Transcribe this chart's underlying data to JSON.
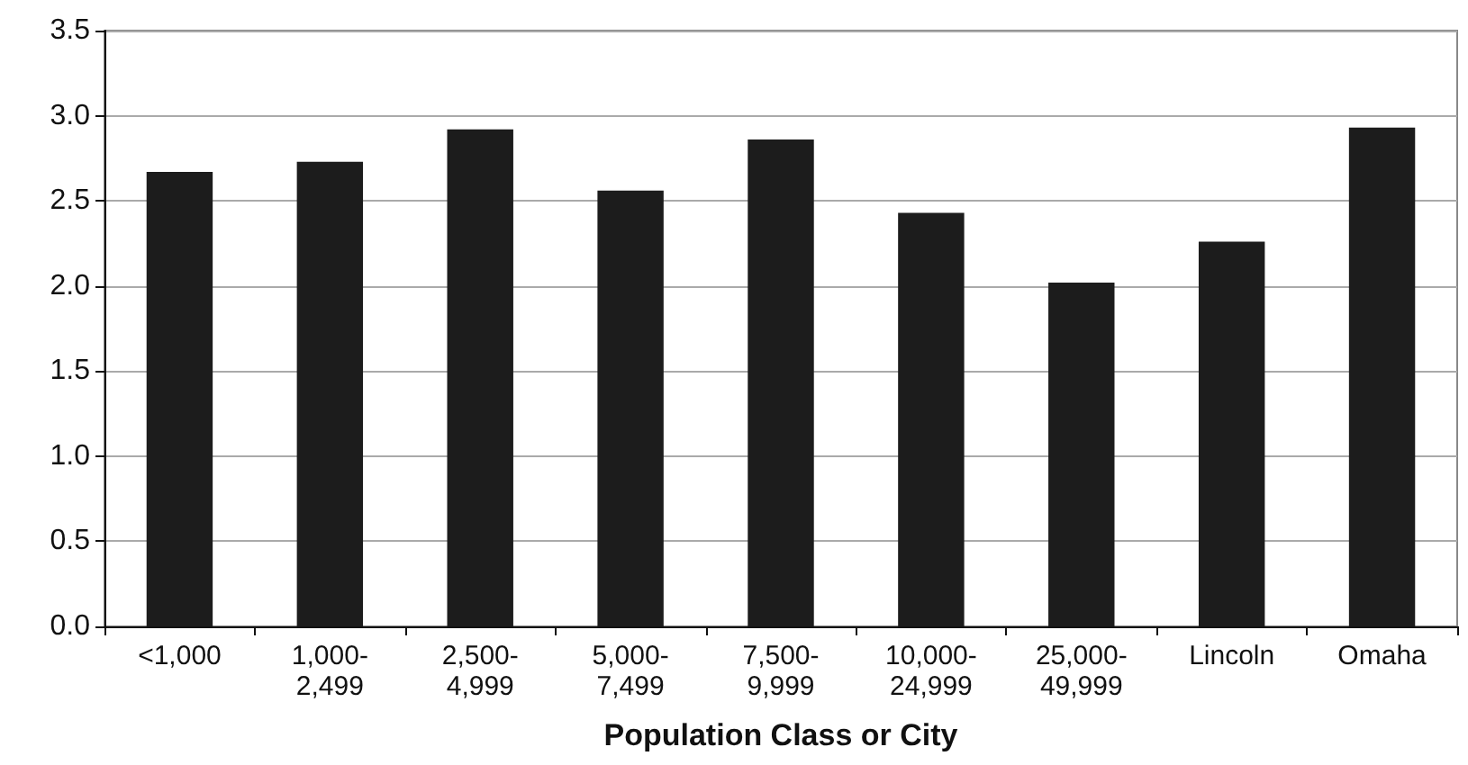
{
  "chart_data": {
    "type": "bar",
    "xlabel": "Population Class or City",
    "categories": [
      "<1,000",
      "1,000-\n2,499",
      "2,500-\n4,999",
      "5,000-\n7,499",
      "7,500-\n9,999",
      "10,000-\n24,999",
      "25,000-\n49,999",
      "Lincoln",
      "Omaha"
    ],
    "values": [
      2.67,
      2.73,
      2.92,
      2.56,
      2.86,
      2.43,
      2.02,
      2.26,
      2.93
    ],
    "color": "#1c1c1c",
    "ylim": [
      0,
      3.5
    ],
    "yticks": [
      {
        "value": 0,
        "label": "0.0"
      },
      0.5,
      {
        "value": 1,
        "label": "1.0"
      },
      1.5,
      {
        "value": 2,
        "label": "2.0"
      },
      2.5,
      {
        "value": 3,
        "label": "3.0"
      },
      3.5
    ],
    "grid": "y"
  }
}
